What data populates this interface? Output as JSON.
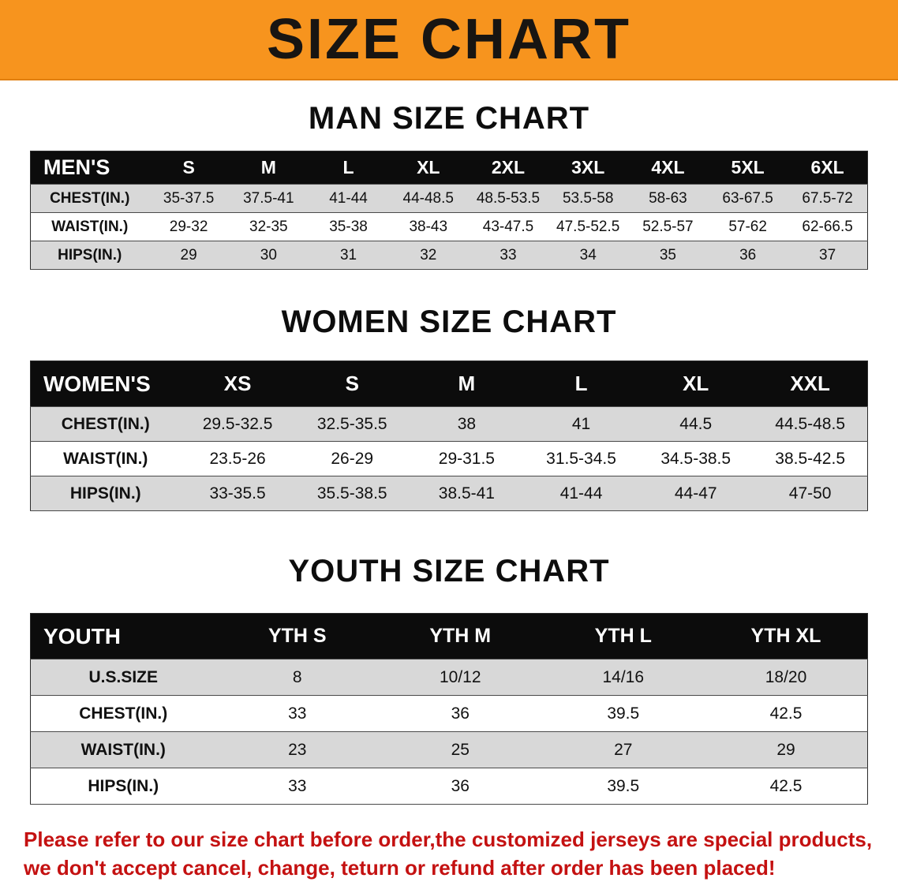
{
  "colors": {
    "banner_bg": "#F7941E",
    "banner_text": "#181512",
    "table_header_bg": "#0C0C0C",
    "table_header_text": "#FFFFFF",
    "row_stripe": "#D8D8D8",
    "disclaimer_red": "#C41111"
  },
  "banner": {
    "title": "SIZE CHART"
  },
  "sections": {
    "men": {
      "heading": "MAN SIZE CHART",
      "header": [
        "MEN'S",
        "S",
        "M",
        "L",
        "XL",
        "2XL",
        "3XL",
        "4XL",
        "5XL",
        "6XL"
      ],
      "rows": [
        [
          "CHEST(IN.)",
          "35-37.5",
          "37.5-41",
          "41-44",
          "44-48.5",
          "48.5-53.5",
          "53.5-58",
          "58-63",
          "63-67.5",
          "67.5-72"
        ],
        [
          "WAIST(IN.)",
          "29-32",
          "32-35",
          "35-38",
          "38-43",
          "43-47.5",
          "47.5-52.5",
          "52.5-57",
          "57-62",
          "62-66.5"
        ],
        [
          "HIPS(IN.)",
          "29",
          "30",
          "31",
          "32",
          "33",
          "34",
          "35",
          "36",
          "37"
        ]
      ]
    },
    "women": {
      "heading": "WOMEN SIZE CHART",
      "header": [
        "WOMEN'S",
        "XS",
        "S",
        "M",
        "L",
        "XL",
        "XXL"
      ],
      "rows": [
        [
          "CHEST(IN.)",
          "29.5-32.5",
          "32.5-35.5",
          "38",
          "41",
          "44.5",
          "44.5-48.5"
        ],
        [
          "WAIST(IN.)",
          "23.5-26",
          "26-29",
          "29-31.5",
          "31.5-34.5",
          "34.5-38.5",
          "38.5-42.5"
        ],
        [
          "HIPS(IN.)",
          "33-35.5",
          "35.5-38.5",
          "38.5-41",
          "41-44",
          "44-47",
          "47-50"
        ]
      ]
    },
    "youth": {
      "heading": "YOUTH SIZE CHART",
      "header": [
        "YOUTH",
        "YTH S",
        "YTH M",
        "YTH L",
        "YTH XL"
      ],
      "rows": [
        [
          "U.S.SIZE",
          "8",
          "10/12",
          "14/16",
          "18/20"
        ],
        [
          "CHEST(IN.)",
          "33",
          "36",
          "39.5",
          "42.5"
        ],
        [
          "WAIST(IN.)",
          "23",
          "25",
          "27",
          "29"
        ],
        [
          "HIPS(IN.)",
          "33",
          "36",
          "39.5",
          "42.5"
        ]
      ]
    }
  },
  "disclaimer": {
    "line1": "Please refer to our size chart before order,the customized jerseys are special products,",
    "line2": "we don't accept cancel, change, teturn or refund after order has been placed!"
  }
}
